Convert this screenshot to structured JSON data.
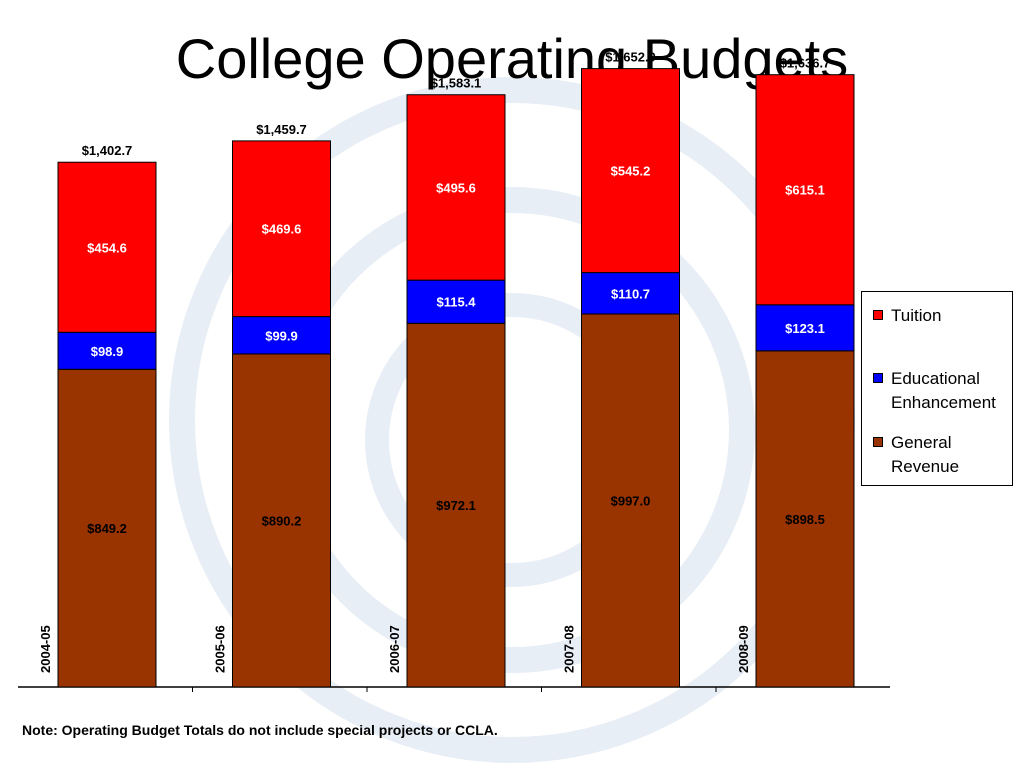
{
  "title": "College Operating Budgets",
  "note": "Note: Operating Budget Totals do not include special projects or CCLA.",
  "colors": {
    "general_revenue": "#993300",
    "educational_enhancement": "#0000FF",
    "tuition": "#FF0000",
    "background_swirl": "#E8EEF6"
  },
  "legend": {
    "tuition": "Tuition",
    "educational_enhancement": "Educational Enhancement",
    "general_revenue": "General Revenue"
  },
  "chart_data": {
    "type": "bar",
    "stacked": true,
    "title": "College Operating Budgets",
    "xlabel": "",
    "ylabel": "",
    "legend_position": "right",
    "grid": false,
    "ylim": [
      0,
      1700
    ],
    "categories": [
      "2004-05",
      "2005-06",
      "2006-07",
      "2007-08",
      "2008-09"
    ],
    "series": [
      {
        "name": "General Revenue",
        "color": "#993300",
        "values": [
          849.2,
          890.2,
          972.1,
          997.0,
          898.5
        ],
        "labels": [
          "$849.2",
          "$890.2",
          "$972.1",
          "$997.0",
          "$898.5"
        ]
      },
      {
        "name": "Educational Enhancement",
        "color": "#0000FF",
        "values": [
          98.9,
          99.9,
          115.4,
          110.7,
          123.1
        ],
        "labels": [
          "$98.9",
          "$99.9",
          "$115.4",
          "$110.7",
          "$123.1"
        ]
      },
      {
        "name": "Tuition",
        "color": "#FF0000",
        "values": [
          454.6,
          469.6,
          495.6,
          545.2,
          615.1
        ],
        "labels": [
          "$454.6",
          "$469.6",
          "$495.6",
          "$545.2",
          "$615.1"
        ]
      }
    ],
    "totals": [
      1402.7,
      1459.7,
      1583.1,
      1652.9,
      1636.7
    ],
    "total_labels": [
      "$1,402.7",
      "$1,459.7",
      "$1,583.1",
      "$1,652.9",
      "$1,636.7"
    ]
  }
}
